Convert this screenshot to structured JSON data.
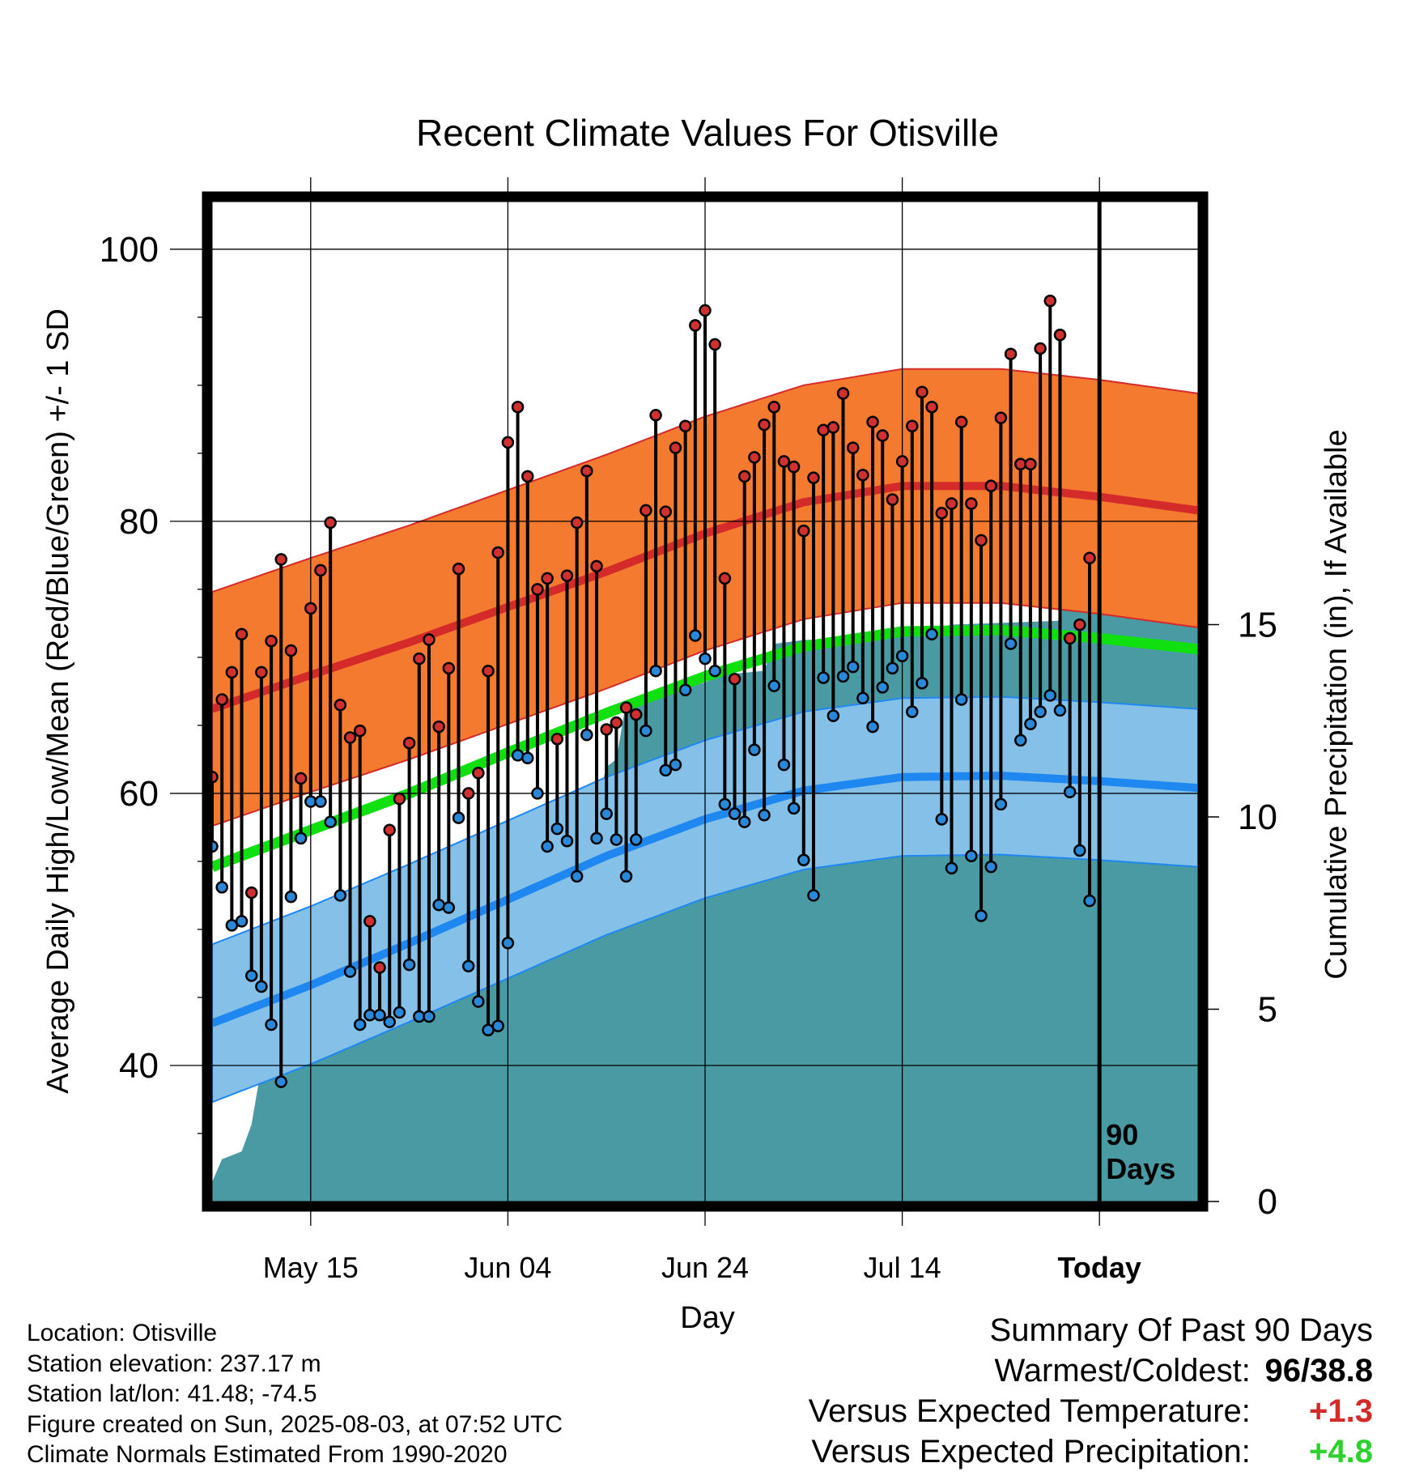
{
  "chart_data": {
    "type": "line",
    "title": "Recent Climate Values For Otisville",
    "xlabel": "Day",
    "ylabel": "Average Daily High/Low/Mean (Red/Blue/Green) +/- 1 SD",
    "y2label": "Cumulative Precipitation (in), If Available",
    "ylim": [
      30,
      103.5
    ],
    "y2lim": [
      0,
      26
    ],
    "yticks": [
      40,
      60,
      80,
      100
    ],
    "y2ticks": [
      0,
      5,
      10,
      15
    ],
    "xlim": [
      0,
      100
    ],
    "xtick_positions": [
      10,
      30,
      50,
      70,
      90
    ],
    "xtick_labels": [
      "May 15",
      "Jun 04",
      "Jun 24",
      "Jul 14",
      "Today"
    ],
    "today_index": 90,
    "today_label": [
      "90",
      "Days"
    ],
    "grid": true,
    "colors": {
      "high_band": "#f47a30",
      "high_line": "#d42a2a",
      "low_band": "#84c0e8",
      "low_line": "#1e88f0",
      "mean_line": "#10e010",
      "precip": "#4a9aa4",
      "high_marker": "#d03030",
      "low_marker": "#2a88d8"
    },
    "normal_high_mean": [
      [
        0,
        66.2
      ],
      [
        10,
        68.7
      ],
      [
        20,
        71.1
      ],
      [
        30,
        73.7
      ],
      [
        40,
        76.3
      ],
      [
        50,
        79.1
      ],
      [
        60,
        81.4
      ],
      [
        70,
        82.6
      ],
      [
        80,
        82.6
      ],
      [
        90,
        81.8
      ],
      [
        100,
        80.8
      ]
    ],
    "normal_high_sd": 8.6,
    "normal_low_mean": [
      [
        0,
        43.1
      ],
      [
        10,
        45.9
      ],
      [
        20,
        49.0
      ],
      [
        30,
        52.2
      ],
      [
        40,
        55.4
      ],
      [
        50,
        58.1
      ],
      [
        60,
        60.2
      ],
      [
        70,
        61.2
      ],
      [
        80,
        61.3
      ],
      [
        90,
        60.9
      ],
      [
        100,
        60.4
      ]
    ],
    "normal_low_sd": 5.8,
    "normal_mean": [
      [
        0,
        54.6
      ],
      [
        10,
        57.3
      ],
      [
        20,
        60.0
      ],
      [
        30,
        63.0
      ],
      [
        40,
        65.9
      ],
      [
        50,
        68.6
      ],
      [
        60,
        70.8
      ],
      [
        70,
        71.9
      ],
      [
        80,
        72.0
      ],
      [
        90,
        71.4
      ],
      [
        100,
        70.6
      ]
    ],
    "daily_high": [
      61.2,
      66.9,
      68.9,
      71.7,
      52.7,
      68.9,
      71.2,
      77.2,
      70.5,
      61.1,
      73.6,
      76.4,
      79.9,
      66.5,
      64.1,
      64.6,
      50.6,
      47.2,
      57.3,
      59.6,
      63.7,
      69.9,
      71.3,
      64.9,
      69.2,
      76.5,
      60.0,
      61.5,
      69.0,
      77.7,
      85.8,
      88.4,
      83.3,
      75.0,
      75.8,
      64.0,
      76.0,
      79.9,
      83.7,
      76.7,
      64.7,
      65.2,
      66.3,
      65.8,
      80.8,
      87.8,
      80.7,
      85.4,
      87.0,
      94.4,
      95.5,
      93.0,
      75.8,
      68.4,
      83.3,
      84.7,
      87.1,
      88.4,
      84.4,
      84.0,
      79.3,
      83.2,
      86.7,
      86.9,
      89.4,
      85.4,
      83.4,
      87.3,
      86.3,
      81.6,
      84.4,
      87.0,
      89.5,
      88.4,
      80.6,
      81.3,
      87.3,
      81.3,
      78.6,
      82.6,
      87.6,
      92.3,
      84.2,
      84.2,
      92.7,
      96.2,
      93.7,
      71.4,
      72.4,
      77.3
    ],
    "daily_low": [
      56.1,
      53.1,
      50.3,
      50.6,
      46.6,
      45.8,
      43.0,
      38.8,
      52.4,
      56.7,
      59.4,
      59.4,
      57.9,
      52.5,
      46.9,
      43.0,
      43.7,
      43.7,
      43.2,
      43.9,
      47.4,
      43.6,
      43.6,
      51.8,
      51.6,
      58.2,
      47.3,
      44.7,
      42.6,
      42.9,
      49.0,
      62.8,
      62.6,
      60.0,
      56.1,
      57.4,
      56.5,
      53.9,
      64.3,
      56.7,
      58.5,
      56.6,
      53.9,
      56.6,
      64.6,
      69.0,
      61.7,
      62.1,
      67.6,
      71.6,
      69.9,
      69.0,
      59.2,
      58.5,
      57.9,
      63.2,
      58.4,
      67.9,
      62.1,
      58.9,
      55.1,
      52.5,
      68.5,
      65.7,
      68.6,
      69.3,
      67.0,
      64.9,
      67.8,
      69.2,
      70.1,
      66.0,
      68.1,
      71.7,
      58.1,
      54.5,
      66.9,
      55.4,
      51.0,
      54.6,
      59.2,
      71.0,
      63.9,
      65.1,
      66.0,
      67.2,
      66.1,
      60.1,
      55.8,
      52.1
    ],
    "cumulative_precip": [
      [
        0,
        0.5
      ],
      [
        1,
        1.1
      ],
      [
        3,
        1.3
      ],
      [
        4,
        2.0
      ],
      [
        5,
        3.5
      ],
      [
        8,
        3.7
      ],
      [
        9,
        4.7
      ],
      [
        10,
        5.0
      ],
      [
        14,
        5.1
      ],
      [
        15,
        5.5
      ],
      [
        17,
        6.1
      ],
      [
        18,
        6.3
      ],
      [
        22,
        6.4
      ],
      [
        26,
        6.5
      ],
      [
        27,
        8.8
      ],
      [
        29,
        9.0
      ],
      [
        31,
        9.2
      ],
      [
        32,
        9.8
      ],
      [
        34,
        10.1
      ],
      [
        39,
        10.3
      ],
      [
        40,
        11.3
      ],
      [
        41,
        11.5
      ],
      [
        42,
        13.0
      ],
      [
        45,
        13.1
      ],
      [
        50,
        13.5
      ],
      [
        52,
        13.7
      ],
      [
        56,
        13.8
      ],
      [
        57,
        14.5
      ],
      [
        60,
        14.6
      ],
      [
        70,
        14.7
      ],
      [
        75,
        15.0
      ],
      [
        86,
        15.1
      ],
      [
        87,
        17.1
      ],
      [
        88,
        17.1
      ],
      [
        100,
        17.1
      ]
    ]
  },
  "meta": {
    "location": "Location: Otisville",
    "elevation": "Station elevation: 237.17 m",
    "latlon": "Station lat/lon: 41.48; -74.5",
    "created": "Figure created on Sun, 2025-08-03, at 07:52 UTC",
    "normals": "Climate Normals Estimated From 1990-2020"
  },
  "summary": {
    "title": "Summary Of Past 90 Days",
    "warm_cold_label": "Warmest/Coldest:",
    "warm_cold_value_hi": "96",
    "warm_cold_value_sep": "/",
    "warm_cold_value_lo": "38.8",
    "temp_label": "Versus Expected Temperature:",
    "temp_value": "+1.3",
    "precip_label": "Versus Expected Precipitation:",
    "precip_value": "+4.8"
  }
}
